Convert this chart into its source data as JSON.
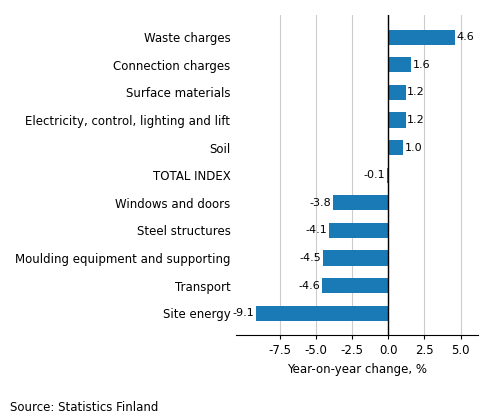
{
  "categories": [
    "Site energy",
    "Transport",
    "Moulding equipment and supporting",
    "Steel structures",
    "Windows and doors",
    "TOTAL INDEX",
    "Soil",
    "Electricity, control, lighting and lift",
    "Surface materials",
    "Connection charges",
    "Waste charges"
  ],
  "values": [
    -9.1,
    -4.6,
    -4.5,
    -4.1,
    -3.8,
    -0.1,
    1.0,
    1.2,
    1.2,
    1.6,
    4.6
  ],
  "bar_color_default": "#1a7ab5",
  "bar_color_total": "#c0396e",
  "total_index_label": "TOTAL INDEX",
  "xlabel": "Year-on-year change, %",
  "source": "Source: Statistics Finland",
  "xlim": [
    -10.5,
    6.2
  ],
  "xticks": [
    -7.5,
    -5.0,
    -2.5,
    0.0,
    2.5,
    5.0
  ],
  "bar_height": 0.55,
  "label_fontsize": 8.5,
  "tick_fontsize": 8.5,
  "source_fontsize": 8.5,
  "xlabel_fontsize": 8.5,
  "value_label_fontsize": 8.0,
  "grid_color": "#cccccc",
  "background_color": "#ffffff"
}
